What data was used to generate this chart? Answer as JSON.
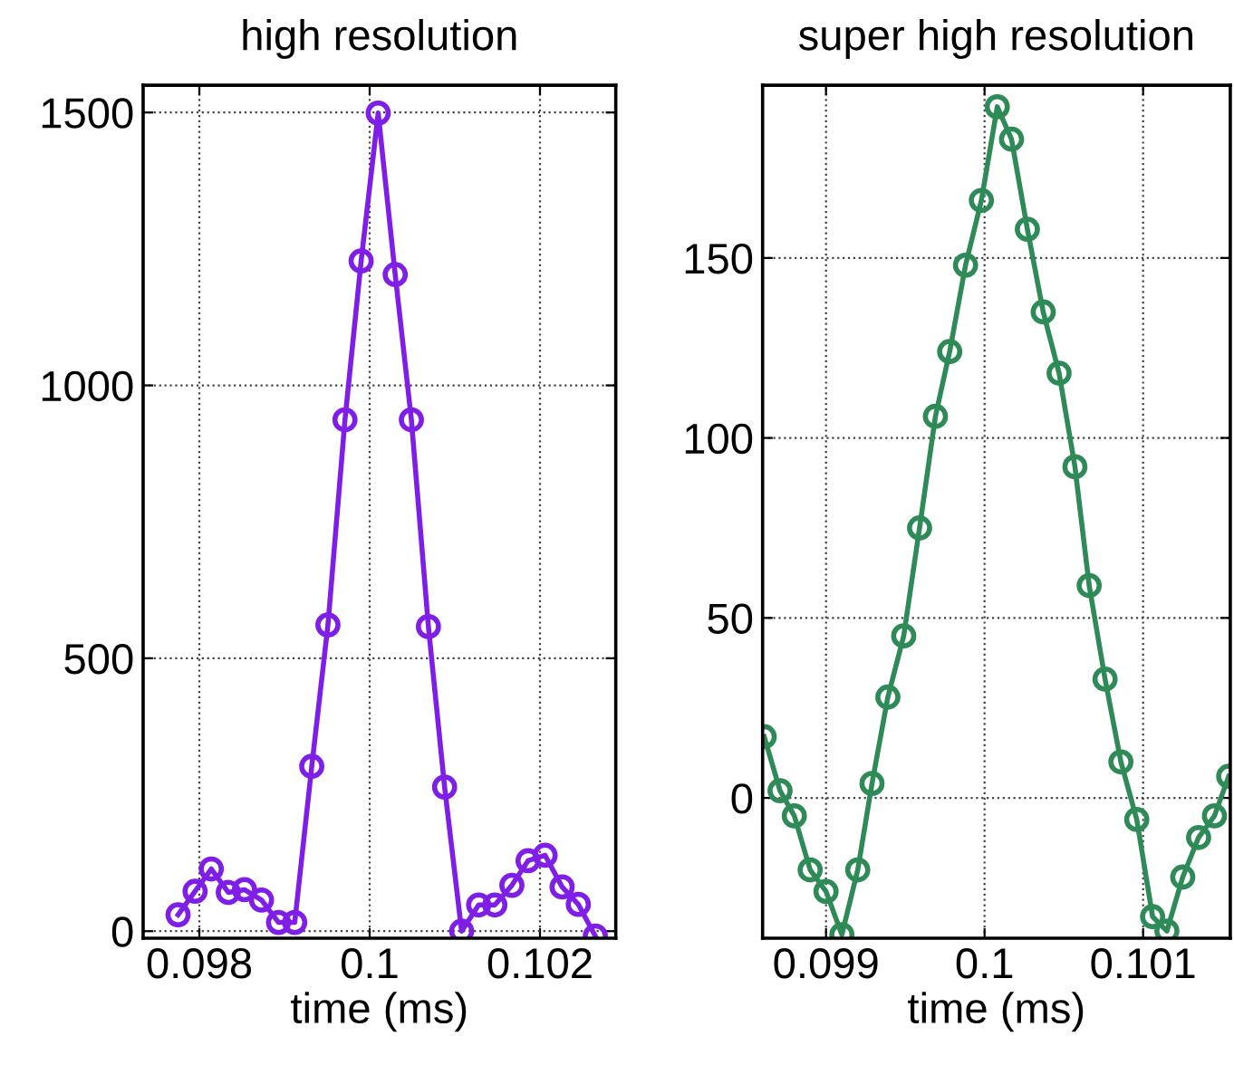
{
  "chart_data": [
    {
      "type": "line",
      "title": "high resolution",
      "xlabel": "time (ms)",
      "marker": "circle",
      "grid": true,
      "line_style": "solid",
      "xlim": [
        0.09734,
        0.10289
      ],
      "ylim": [
        -13,
        1550
      ],
      "xticks": [
        0.098,
        0.1,
        0.102
      ],
      "yticks": [
        0,
        500,
        1000,
        1500
      ],
      "x": [
        0.09775,
        0.09795,
        0.09814,
        0.09834,
        0.09853,
        0.09873,
        0.09893,
        0.09912,
        0.09932,
        0.09951,
        0.09971,
        0.0999,
        0.1001,
        0.1003,
        0.10049,
        0.10069,
        0.10088,
        0.10108,
        0.10128,
        0.10147,
        0.10167,
        0.10186,
        0.10206,
        0.10226,
        0.10245,
        0.10265
      ],
      "series": [
        {
          "color": "#7f1ee6",
          "values": [
            30,
            73,
            114,
            71,
            76,
            57,
            16,
            16,
            302,
            561,
            937,
            1228,
            1499,
            1203,
            937,
            558,
            264,
            0,
            48,
            48,
            84,
            129,
            139,
            81,
            49,
            -9
          ]
        }
      ]
    },
    {
      "type": "line",
      "title": "super high resolution",
      "xlabel": "time (ms)",
      "marker": "circle",
      "grid": true,
      "line_style": "solid",
      "xlim": [
        0.0986,
        0.10155
      ],
      "ylim": [
        -39,
        198
      ],
      "xticks": [
        0.099,
        0.1,
        0.101
      ],
      "yticks": [
        0,
        50,
        100,
        150
      ],
      "x": [
        0.09861,
        0.09871,
        0.0988,
        0.0989,
        0.099,
        0.0991,
        0.0992,
        0.09929,
        0.09939,
        0.09949,
        0.09959,
        0.09969,
        0.09978,
        0.09988,
        0.09998,
        0.10008,
        0.10017,
        0.10027,
        0.10037,
        0.10047,
        0.10057,
        0.10066,
        0.10076,
        0.10086,
        0.10096,
        0.10106,
        0.10115,
        0.10125,
        0.10135,
        0.10145,
        0.10154
      ],
      "series": [
        {
          "color": "#2e8b57",
          "values": [
            17,
            2,
            -5,
            -20,
            -26,
            -38,
            -20,
            4,
            28,
            45,
            75,
            106,
            124,
            148,
            166,
            192,
            183,
            158,
            135,
            118,
            92,
            59,
            33,
            10,
            -6,
            -33,
            -37,
            -22,
            -11,
            -5,
            6
          ]
        }
      ]
    }
  ]
}
